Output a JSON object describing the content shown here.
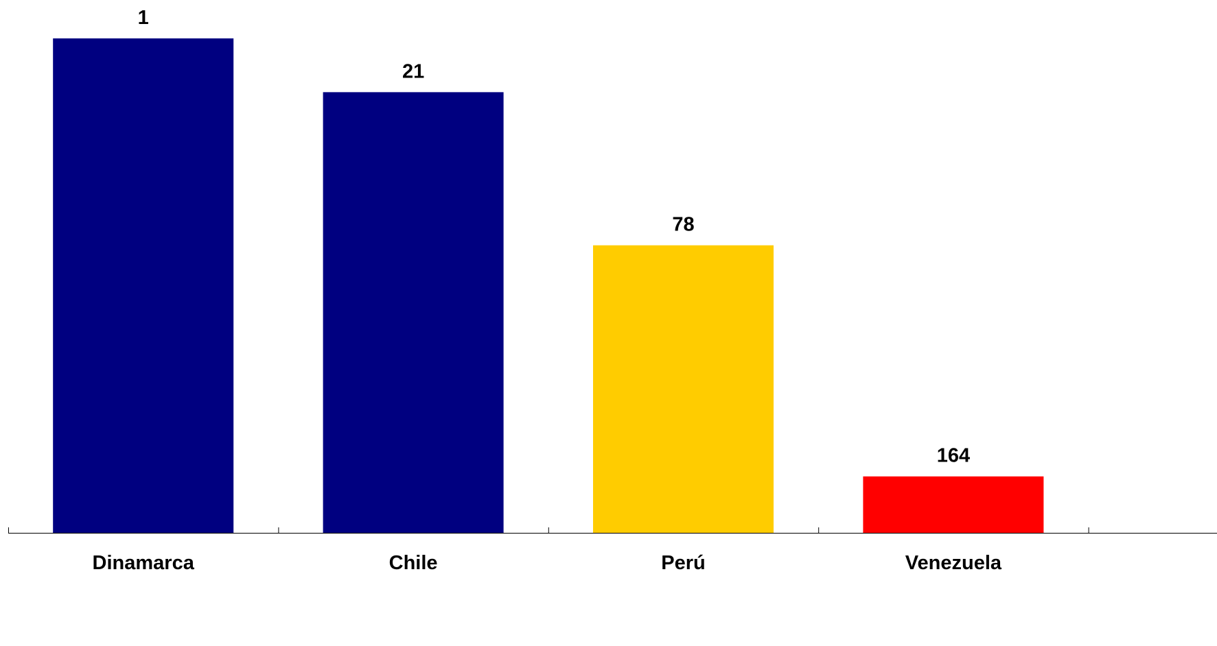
{
  "chart_data": {
    "type": "bar",
    "title": "",
    "xlabel": "",
    "ylabel": "",
    "categories": [
      "Dinamarca",
      "Chile",
      "Perú",
      "Venezuela"
    ],
    "values": [
      1,
      21,
      78,
      164
    ],
    "axis": "reversed-rank",
    "ylim": [
      185,
      1
    ],
    "bar_colors": [
      "#000080",
      "#000080",
      "#FFCC00",
      "#FF0000"
    ],
    "data_labels": [
      "1",
      "21",
      "78",
      "164"
    ],
    "grid": false,
    "legend": "none",
    "y_axis_visible": false
  }
}
